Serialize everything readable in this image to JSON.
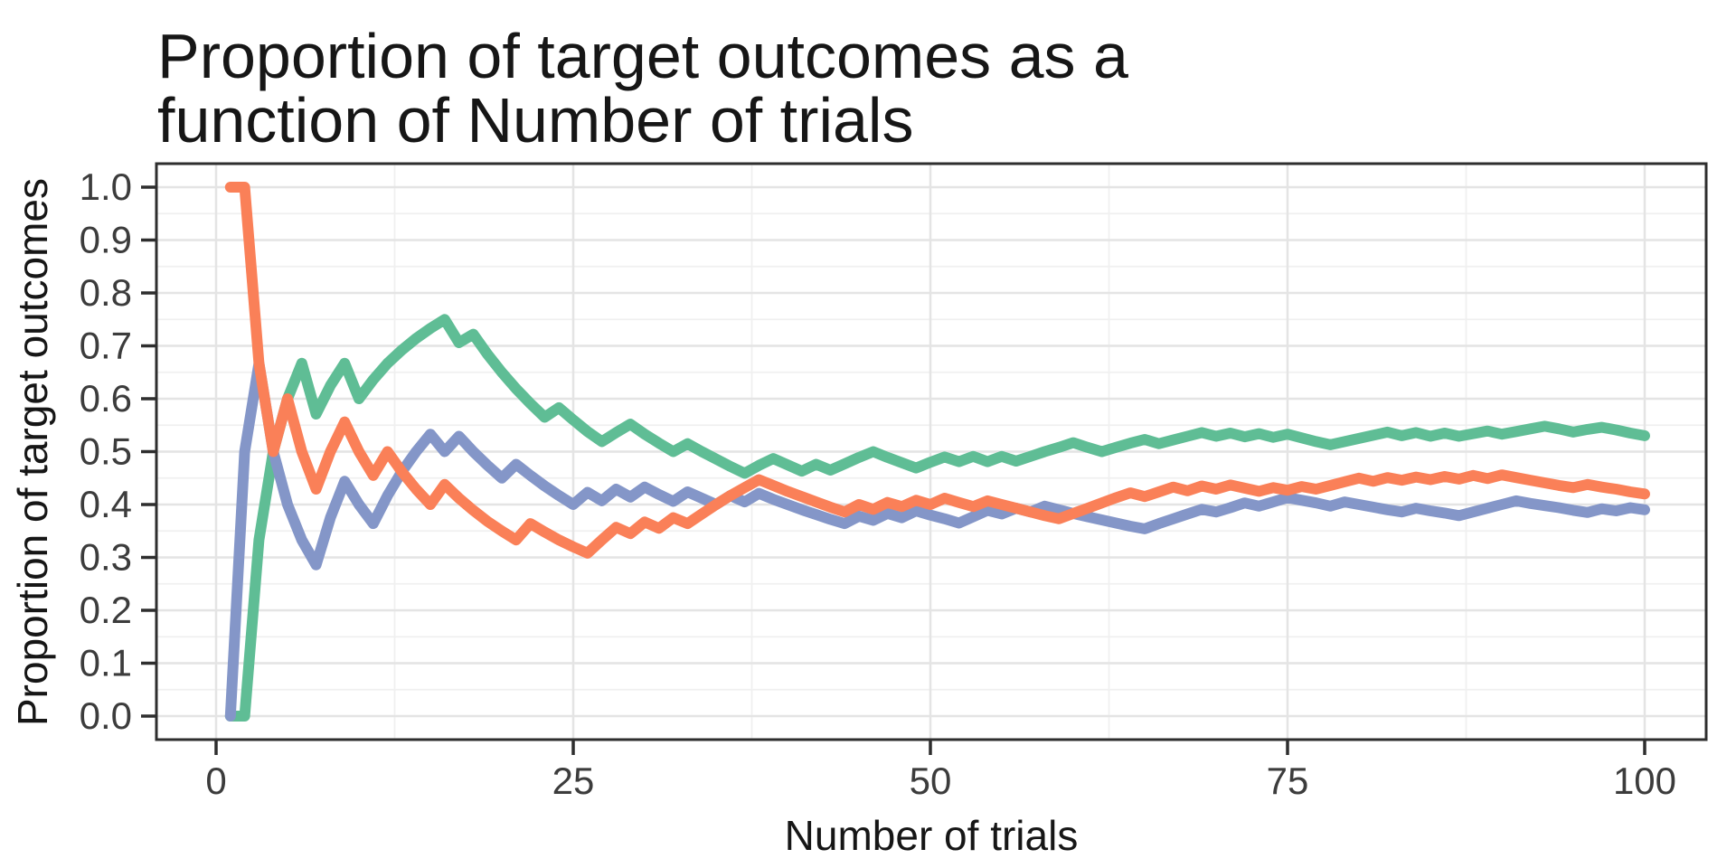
{
  "figure": {
    "title_line1": "Proportion of target outcomes as a",
    "title_line2": "function of Number of trials",
    "x_axis_title": "Number of trials",
    "y_axis_title": "Proportion of target outcomes"
  },
  "style": {
    "background_color": "#ffffff",
    "panel_background": "#ffffff",
    "panel_border_color": "#2e2e2e",
    "major_grid_color": "#e4e4e4",
    "minor_grid_color": "#f0f0f0",
    "tick_color": "#2e2e2e",
    "tick_label_color": "#3c3c3c",
    "title_color": "#161616",
    "line_width": 12
  },
  "chart_data": {
    "type": "line",
    "title": "Proportion of target outcomes as a function of Number of trials",
    "xlabel": "Number of trials",
    "ylabel": "Proportion of target outcomes",
    "xlim": [
      0,
      100
    ],
    "ylim": [
      0.0,
      1.0
    ],
    "x_ticks": [
      0,
      25,
      50,
      75,
      100
    ],
    "x_tick_labels": [
      "0",
      "25",
      "50",
      "75",
      "100"
    ],
    "y_ticks": [
      0.0,
      0.1,
      0.2,
      0.3,
      0.4,
      0.5,
      0.6,
      0.7,
      0.8,
      0.9,
      1.0
    ],
    "y_tick_labels": [
      "0.0",
      "0.1",
      "0.2",
      "0.3",
      "0.4",
      "0.5",
      "0.6",
      "0.7",
      "0.8",
      "0.9",
      "1.0"
    ],
    "x_minor_gridlines": [
      12.5,
      37.5,
      62.5,
      87.5
    ],
    "y_minor_gridlines": [
      0.05,
      0.15,
      0.25,
      0.35,
      0.45,
      0.55,
      0.65,
      0.75,
      0.85,
      0.95
    ],
    "grid": "major and minor, light gray on white panel",
    "legend": "none",
    "x": [
      1,
      2,
      3,
      4,
      5,
      6,
      7,
      8,
      9,
      10,
      11,
      12,
      13,
      14,
      15,
      16,
      17,
      18,
      19,
      20,
      21,
      22,
      23,
      24,
      25,
      26,
      27,
      28,
      29,
      30,
      31,
      32,
      33,
      34,
      35,
      36,
      37,
      38,
      39,
      40,
      41,
      42,
      43,
      44,
      45,
      46,
      47,
      48,
      49,
      50,
      51,
      52,
      53,
      54,
      55,
      56,
      57,
      58,
      59,
      60,
      61,
      62,
      63,
      64,
      65,
      66,
      67,
      68,
      69,
      70,
      71,
      72,
      73,
      74,
      75,
      76,
      77,
      78,
      79,
      80,
      81,
      82,
      83,
      84,
      85,
      86,
      87,
      88,
      89,
      90,
      91,
      92,
      93,
      94,
      95,
      96,
      97,
      98,
      99,
      100
    ],
    "series": [
      {
        "name": "series-green",
        "color": "#5fbd95",
        "values": [
          0,
          0,
          0.333,
          0.5,
          0.6,
          0.667,
          0.571,
          0.625,
          0.667,
          0.6,
          0.636,
          0.667,
          0.692,
          0.714,
          0.733,
          0.75,
          0.706,
          0.722,
          0.684,
          0.65,
          0.619,
          0.591,
          0.565,
          0.583,
          0.56,
          0.538,
          0.519,
          0.536,
          0.552,
          0.533,
          0.516,
          0.5,
          0.515,
          0.5,
          0.486,
          0.472,
          0.459,
          0.474,
          0.487,
          0.475,
          0.463,
          0.476,
          0.465,
          0.477,
          0.489,
          0.5,
          0.489,
          0.479,
          0.469,
          0.48,
          0.49,
          0.481,
          0.491,
          0.481,
          0.491,
          0.482,
          0.491,
          0.5,
          0.508,
          0.517,
          0.508,
          0.5,
          0.508,
          0.516,
          0.523,
          0.515,
          0.522,
          0.529,
          0.536,
          0.529,
          0.535,
          0.528,
          0.534,
          0.527,
          0.533,
          0.526,
          0.519,
          0.513,
          0.519,
          0.525,
          0.531,
          0.537,
          0.53,
          0.536,
          0.529,
          0.535,
          0.529,
          0.534,
          0.539,
          0.533,
          0.538,
          0.543,
          0.548,
          0.543,
          0.537,
          0.542,
          0.546,
          0.541,
          0.535,
          0.53
        ]
      },
      {
        "name": "series-blue",
        "color": "#8496c8",
        "values": [
          0,
          0.5,
          0.667,
          0.5,
          0.4,
          0.333,
          0.286,
          0.375,
          0.444,
          0.4,
          0.364,
          0.417,
          0.462,
          0.5,
          0.533,
          0.5,
          0.529,
          0.5,
          0.474,
          0.45,
          0.476,
          0.455,
          0.435,
          0.417,
          0.4,
          0.423,
          0.407,
          0.429,
          0.414,
          0.433,
          0.419,
          0.406,
          0.424,
          0.412,
          0.4,
          0.417,
          0.405,
          0.421,
          0.41,
          0.4,
          0.39,
          0.381,
          0.372,
          0.364,
          0.378,
          0.37,
          0.383,
          0.375,
          0.388,
          0.38,
          0.373,
          0.365,
          0.377,
          0.389,
          0.382,
          0.393,
          0.386,
          0.397,
          0.39,
          0.383,
          0.377,
          0.371,
          0.365,
          0.359,
          0.354,
          0.364,
          0.373,
          0.382,
          0.391,
          0.386,
          0.394,
          0.403,
          0.397,
          0.405,
          0.413,
          0.408,
          0.403,
          0.397,
          0.405,
          0.4,
          0.395,
          0.39,
          0.386,
          0.393,
          0.388,
          0.384,
          0.379,
          0.386,
          0.393,
          0.4,
          0.407,
          0.402,
          0.398,
          0.394,
          0.389,
          0.385,
          0.392,
          0.388,
          0.394,
          0.39
        ]
      },
      {
        "name": "series-orange",
        "color": "#fa8058",
        "values": [
          1,
          1,
          0.667,
          0.5,
          0.6,
          0.5,
          0.429,
          0.5,
          0.556,
          0.5,
          0.455,
          0.5,
          0.462,
          0.429,
          0.4,
          0.438,
          0.412,
          0.389,
          0.368,
          0.35,
          0.333,
          0.364,
          0.348,
          0.333,
          0.32,
          0.308,
          0.333,
          0.357,
          0.345,
          0.367,
          0.355,
          0.375,
          0.364,
          0.382,
          0.4,
          0.417,
          0.432,
          0.447,
          0.436,
          0.425,
          0.415,
          0.405,
          0.395,
          0.386,
          0.4,
          0.391,
          0.404,
          0.396,
          0.408,
          0.4,
          0.412,
          0.404,
          0.396,
          0.407,
          0.4,
          0.393,
          0.386,
          0.379,
          0.373,
          0.383,
          0.393,
          0.403,
          0.413,
          0.422,
          0.415,
          0.424,
          0.433,
          0.426,
          0.435,
          0.429,
          0.437,
          0.431,
          0.425,
          0.432,
          0.427,
          0.434,
          0.429,
          0.436,
          0.443,
          0.45,
          0.444,
          0.451,
          0.446,
          0.452,
          0.447,
          0.453,
          0.448,
          0.455,
          0.449,
          0.456,
          0.451,
          0.446,
          0.441,
          0.436,
          0.432,
          0.438,
          0.433,
          0.429,
          0.424,
          0.42
        ]
      }
    ]
  }
}
